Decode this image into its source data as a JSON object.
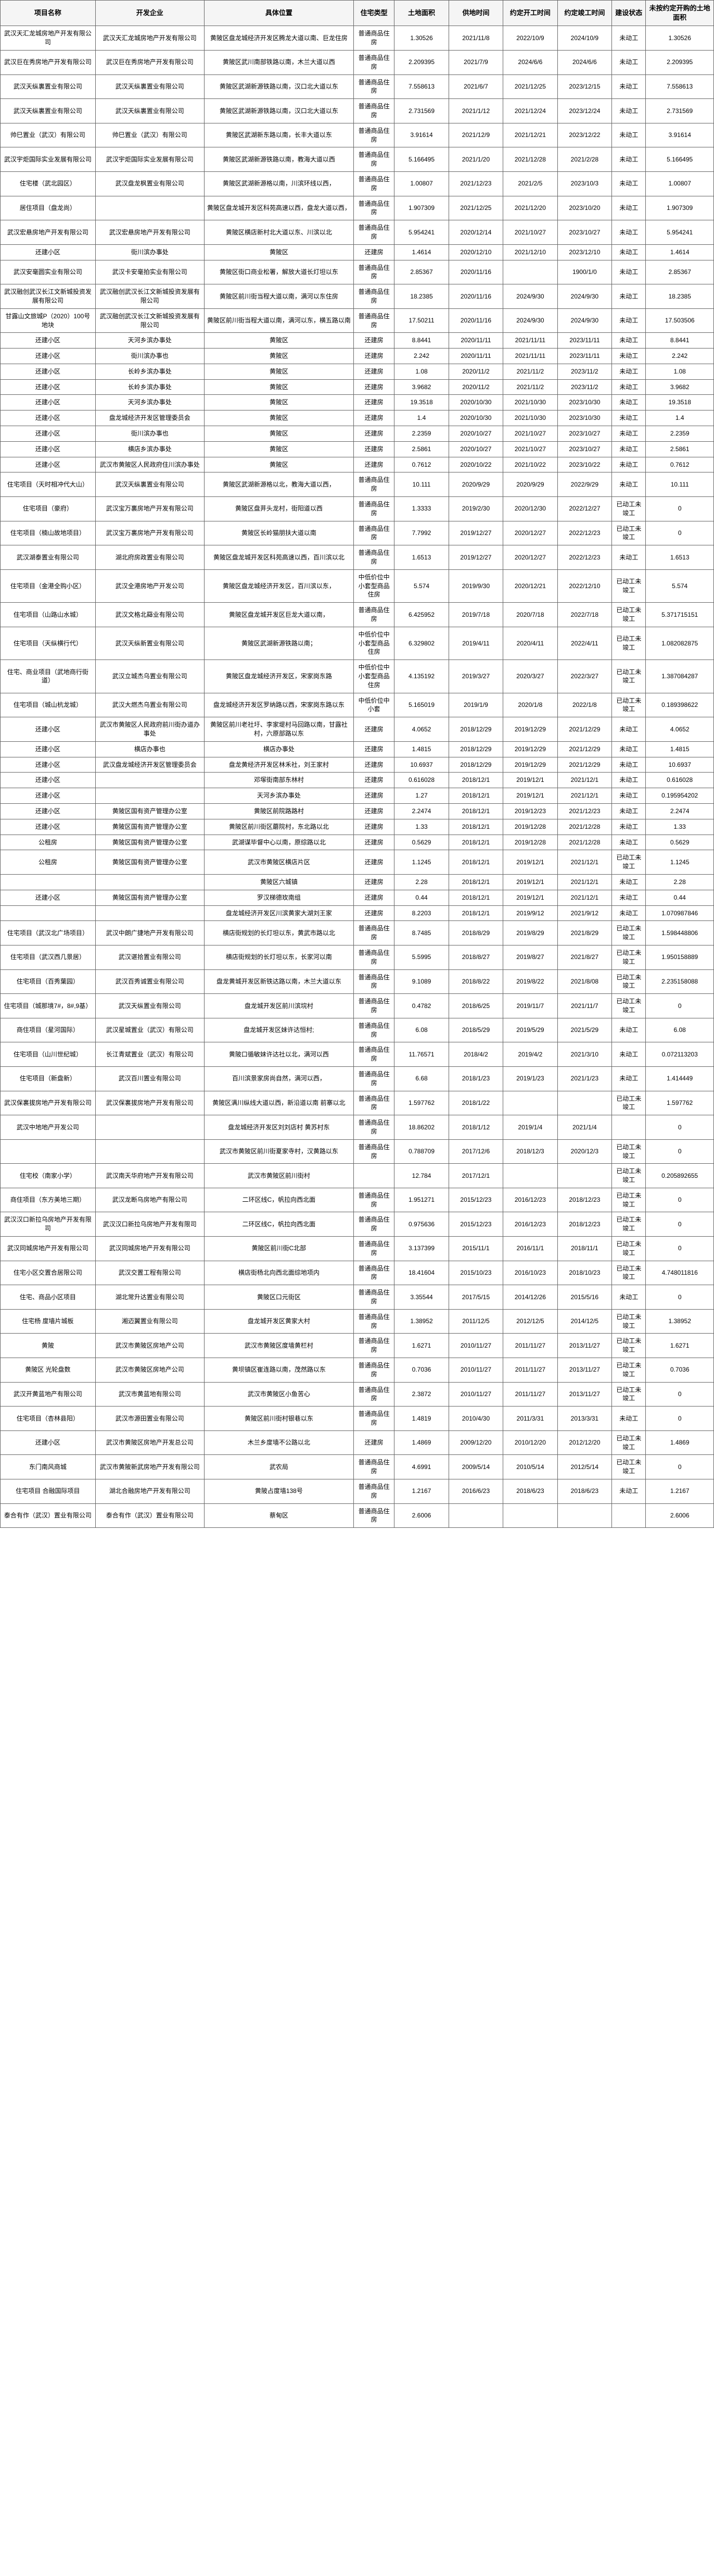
{
  "table": {
    "header_bg": "#f5f5f5",
    "border_color": "#666666",
    "text_color": "#222222",
    "columns": [
      "项目名称",
      "开发企业",
      "具体位置",
      "住宅类型",
      "土地面积",
      "供地时间",
      "约定开工时间",
      "约定竣工时间",
      "建设状态",
      "未按约定开购的土地面积"
    ],
    "rows": [
      [
        "武汉天汇龙城房地产开发有限公司",
        "武汉天汇龙城房地产开发有限公司",
        "黄陂区盘龙城经济开发区腾龙大道以南、巨龙住房",
        "普通商品住房",
        "1.30526",
        "2021/11/8",
        "2022/10/9",
        "2024/10/9",
        "未动工",
        "1.30526"
      ],
      [
        "武汉巨在秀房地产开发有限公司",
        "武汉巨在秀房地产开发有限公司",
        "黄陂区武川南部铁路以南，木兰大道以西",
        "普通商品住房",
        "2.209395",
        "2021/7/9",
        "2024/6/6",
        "2024/6/6",
        "未动工",
        "2.209395"
      ],
      [
        "武汉天纵裏置业有限公司",
        "武汉天纵裏置业有限公司",
        "黄陂区武湖新源铁路以南，汉口北大道以东",
        "普通商品住房",
        "7.558613",
        "2021/6/7",
        "2021/12/25",
        "2023/12/15",
        "未动工",
        "7.558613"
      ],
      [
        "武汉天纵裏置业有限公司",
        "武汉天纵裏置业有限公司",
        "黄陂区武湖新源铁路以南，汉口北大道以东",
        "普通商品住房",
        "2.731569",
        "2021/1/12",
        "2021/12/24",
        "2023/12/24",
        "未动工",
        "2.731569"
      ],
      [
        "帅巳置业（武汉）有限公司",
        "帅巳置业（武汉）有限公司",
        "黄陂区武湖新东路以南，长丰大道以东",
        "普通商品住房",
        "3.91614",
        "2021/12/9",
        "2021/12/21",
        "2023/12/22",
        "未动工",
        "3.91614"
      ],
      [
        "武汉宇炬国际实业发展有限公司",
        "武汉宇炬国际实业发展有限公司",
        "黄陂区武湖新源铁路以南，教海大道以西",
        "普通商品住房",
        "5.166495",
        "2021/1/20",
        "2021/12/28",
        "2021/2/28",
        "未动工",
        "5.166495"
      ],
      [
        "住宅楼（武北园区）",
        "武汉盘龙枫置业有限公司",
        "黄陂区武湖新源格以南，川滨环线以西，",
        "普通商品住房",
        "1.00807",
        "2021/12/23",
        "2021/2/5",
        "2023/10/3",
        "未动工",
        "1.00807"
      ],
      [
        "居住项目（盘龙尚）",
        "",
        "黄陂区盘龙城开发区科苑高速以西，盘龙大道以西，",
        "普通商品住房",
        "1.907309",
        "2021/12/25",
        "2021/12/20",
        "2023/10/20",
        "未动工",
        "1.907309"
      ],
      [
        "武汉宏悬房地产开发有限公司",
        "武汉宏悬房地产开发有限公司",
        "黄陂区横店新村北大道以东、川滨以北",
        "普通商品住房",
        "5.954241",
        "2020/12/14",
        "2021/10/27",
        "2023/10/27",
        "未动工",
        "5.954241"
      ],
      [
        "还建小区",
        "街川滨办事处",
        "黄陂区",
        "还建房",
        "1.4614",
        "2020/12/10",
        "2021/12/10",
        "2023/12/10",
        "未动工",
        "1.4614"
      ],
      [
        "武汉安毫圆实业有限公司",
        "武汉卡安毫拍实业有限公司",
        "黄陂区街口商业松署，解放大道长灯坦以东",
        "普通商品住房",
        "2.85367",
        "2020/11/16",
        "",
        "1900/1/0",
        "未动工",
        "2.85367"
      ],
      [
        "武汉融创武汉长江文新城投资发展有限公司",
        "武汉融创武汉长江文新城投资发展有限公司",
        "黄陂区前川街当程大道以南，满河以东住房",
        "普通商品住房",
        "18.2385",
        "2020/11/16",
        "2024/9/30",
        "2024/9/30",
        "未动工",
        "18.2385"
      ],
      [
        "甘露山文旅城P（2020）100号地块",
        "武汉融创武汉长江文新城投资发展有限公司",
        "黄陂区前川街当程大道以南，满河以东，横五路以南",
        "普通商品住房",
        "17.50211",
        "2020/11/16",
        "2024/9/30",
        "2024/9/30",
        "未动工",
        "17.503506"
      ],
      [
        "还建小区",
        "天河乡滨办事处",
        "黄陂区",
        "还建房",
        "8.8441",
        "2020/11/11",
        "2021/11/11",
        "2023/11/11",
        "未动工",
        "8.8441"
      ],
      [
        "还建小区",
        "街川滨办事也",
        "黄陂区",
        "还建房",
        "2.242",
        "2020/11/11",
        "2021/11/11",
        "2023/11/11",
        "未动工",
        "2.242"
      ],
      [
        "还建小区",
        "长岭乡滨办事处",
        "黄陂区",
        "还建房",
        "1.08",
        "2020/11/2",
        "2021/11/2",
        "2023/11/2",
        "未动工",
        "1.08"
      ],
      [
        "还建小区",
        "长岭乡滨办事处",
        "黄陂区",
        "还建房",
        "3.9682",
        "2020/11/2",
        "2021/11/2",
        "2023/11/2",
        "未动工",
        "3.9682"
      ],
      [
        "还建小区",
        "天河乡滨办事处",
        "黄陂区",
        "还建房",
        "19.3518",
        "2020/10/30",
        "2021/10/30",
        "2023/10/30",
        "未动工",
        "19.3518"
      ],
      [
        "还建小区",
        "盘龙城经济开发区管理委员会",
        "黄陂区",
        "还建房",
        "1.4",
        "2020/10/30",
        "2021/10/30",
        "2023/10/30",
        "未动工",
        "1.4"
      ],
      [
        "还建小区",
        "街川滨办事也",
        "黄陂区",
        "还建房",
        "2.2359",
        "2020/10/27",
        "2021/10/27",
        "2023/10/27",
        "未动工",
        "2.2359"
      ],
      [
        "还建小区",
        "横店乡滨办事处",
        "黄陂区",
        "还建房",
        "2.5861",
        "2020/10/27",
        "2021/10/27",
        "2023/10/27",
        "未动工",
        "2.5861"
      ],
      [
        "还建小区",
        "武汉市黄陂区人民政府住川滨办事处",
        "黄陂区",
        "还建房",
        "0.7612",
        "2020/10/22",
        "2021/10/22",
        "2023/10/22",
        "未动工",
        "0.7612"
      ],
      [
        "住宅项目（天时相冲代大山）",
        "武汉天纵裏置业有限公司",
        "黄陂区武湖新源格以北，教海大道以西，",
        "普通商品住房",
        "10.111",
        "2020/9/29",
        "2020/9/29",
        "2022/9/29",
        "未动工",
        "10.111"
      ],
      [
        "住宅项目（豪府）",
        "武汉宝万裏房地产开发有限公司",
        "黄陂区盘茾头龙村，街阳道以西",
        "普通商品住房",
        "1.3333",
        "2019/2/30",
        "2020/12/30",
        "2022/12/27",
        "已动工未竣工",
        "0"
      ],
      [
        "住宅项目（楠山故地项目）",
        "武汉宝万裏房地产开发有限公司",
        "黄陂区长岭猫朋扶大道以南",
        "普通商品住房",
        "7.7992",
        "2019/12/27",
        "2020/12/27",
        "2022/12/23",
        "已动工未竣工",
        "0"
      ],
      [
        "武汉湖泰置业有限公司",
        "湖北府房政置业有限公司",
        "黄陂区盘龙城开发区科苑高速以西，百川滨以北",
        "普通商品住房",
        "1.6513",
        "2019/12/27",
        "2020/12/27",
        "2022/12/23",
        "未动工",
        "1.6513"
      ],
      [
        "住宅项目（金港全购小区）",
        "武汉全港房地产开发公司",
        "黄陂区盘龙城经济开发区，百川滨以东，",
        "中低价位中小套型商品住房",
        "5.574",
        "2019/9/30",
        "2020/12/21",
        "2022/12/10",
        "已动工未竣工",
        "5.574"
      ],
      [
        "住宅项目（山路山水城）",
        "武汉文格北羄业有限公司",
        "黄陂区盘龙城开发区巨龙大道以南，",
        "普通商品住房",
        "6.425952",
        "2019/7/18",
        "2020/7/18",
        "2022/7/18",
        "已动工未竣工",
        "5.371715151"
      ],
      [
        "住宅项目（天纵横行代）",
        "武汉天纵新置业有限公司",
        "黄陂区武湖新源铁路以南；",
        "中低价位中小套型商品住房",
        "6.329802",
        "2019/4/11",
        "2020/4/11",
        "2022/4/11",
        "已动工未竣工",
        "1.082082875"
      ],
      [
        "住宅、商业项目（武地商行街道）",
        "武汉立城杰乌置业有限公司",
        "黄陂区盘龙城经济开发区，宋家岗东路",
        "中低价位中小套型商品住房",
        "4.135192",
        "2019/3/27",
        "2020/3/27",
        "2022/3/27",
        "已动工未竣工",
        "1.387084287"
      ],
      [
        "住宅项目（城山杭龙城）",
        "武汉大燃杰乌置业有限公司",
        "盘龙城经济开发区罗纳路以西，宋家岗东路以东",
        "中低价位中小套",
        "5.165019",
        "2019/1/9",
        "2020/1/8",
        "2022/1/8",
        "已动工未竣工",
        "0.189398622"
      ],
      [
        "还建小区",
        "武汉市黄陂区人民政府前川街办道办事处",
        "黄陂区前川老社圩、李家堤村马回路以南，甘露社村，六原部路以东",
        "还建房",
        "4.0652",
        "2018/12/29",
        "2019/12/29",
        "2021/12/29",
        "未动工",
        "4.0652"
      ],
      [
        "还建小区",
        "横店办事也",
        "横店办事处",
        "还建房",
        "1.4815",
        "2018/12/29",
        "2019/12/29",
        "2021/12/29",
        "未动工",
        "1.4815"
      ],
      [
        "还建小区",
        "武汉盘龙城经济开发区管理委员会",
        "盘龙黄经济开发区林禾社，刘王家村",
        "还建房",
        "10.6937",
        "2018/12/29",
        "2019/12/29",
        "2021/12/29",
        "未动工",
        "10.6937"
      ],
      [
        "还建小区",
        "",
        "邓塚街南部东林村",
        "还建房",
        "0.616028",
        "2018/12/1",
        "2019/12/1",
        "2021/12/1",
        "未动工",
        "0.616028"
      ],
      [
        "还建小区",
        "",
        "天河乡滨办事处",
        "还建房",
        "1.27",
        "2018/12/1",
        "2019/12/1",
        "2021/12/1",
        "未动工",
        "0.195954202"
      ],
      [
        "还建小区",
        "黄陂区国有资产管理办公室",
        "黄陂区前院路路村",
        "还建房",
        "2.2474",
        "2018/12/1",
        "2019/12/23",
        "2021/12/23",
        "未动工",
        "2.2474"
      ],
      [
        "还建小区",
        "黄陂区国有资产管理办公室",
        "黄陂区前川街区蘑院村，东北路以北",
        "还建房",
        "1.33",
        "2018/12/1",
        "2019/12/28",
        "2021/12/28",
        "未动工",
        "1.33"
      ],
      [
        "公租房",
        "黄陂区国有资产管理办公室",
        "武湖谋毕督中心以南，原综路以北",
        "还建房",
        "0.5629",
        "2018/12/1",
        "2019/12/28",
        "2021/12/28",
        "未动工",
        "0.5629"
      ],
      [
        "公租房",
        "黄陂区国有资产管理办公室",
        "武汉市黄陂区横店片区",
        "还建房",
        "1.1245",
        "2018/12/1",
        "2019/12/1",
        "2021/12/1",
        "已动工未竣工",
        "1.1245"
      ],
      [
        "",
        "",
        "黄陂区六城镇",
        "还建房",
        "2.28",
        "2018/12/1",
        "2019/12/1",
        "2021/12/1",
        "未动工",
        "2.28"
      ],
      [
        "还建小区",
        "黄陂区国有资产管理办公室",
        "罗汉梯德玫南组",
        "还建房",
        "0.44",
        "2018/12/1",
        "2019/12/1",
        "2021/12/1",
        "未动工",
        "0.44"
      ],
      [
        "",
        "",
        "盘龙城经济开发区川滨黄家大湖刘王家",
        "还建房",
        "8.2203",
        "2018/12/1",
        "2019/9/12",
        "2021/9/12",
        "未动工",
        "1.070987846"
      ],
      [
        "住宅项目（武汉北广场项目）",
        "武汉中朗广捷地产开发有限公司",
        "横店街规划的长灯坦以东，黄武市路以北",
        "普通商品住房",
        "8.7485",
        "2018/8/29",
        "2019/8/29",
        "2021/8/29",
        "已动工未竣工",
        "1.598448806"
      ],
      [
        "住宅项目（武汉西几景居）",
        "武汉谌拾置业有限公司",
        "横店街规划的长灯坦以东，长家河以南",
        "普通商品住房",
        "5.5995",
        "2018/8/27",
        "2019/8/27",
        "2021/8/27",
        "已动工未竣工",
        "1.950158889"
      ],
      [
        "住宅项目（百秀葉园）",
        "武汉百秀诚置业有限公司",
        "盘龙黄城开发区新铁达路以南，木兰大道以东",
        "普通商品住房",
        "9.1089",
        "2018/8/22",
        "2019/8/22",
        "2021/8/08",
        "已动工未竣工",
        "2.235158088"
      ],
      [
        "住宅项目（城那境7#，8#,9基）",
        "武汉天纵置业有限公司",
        "盘龙城开发区前川滨垸村",
        "普通商品住房",
        "0.4782",
        "2018/6/25",
        "2019/11/7",
        "2021/11/7",
        "已动工未竣工",
        "0"
      ],
      [
        "商住项目（星河国际）",
        "武汉星城置业（武汉）有限公司",
        "盘龙城开发区妹许达恒村;",
        "普通商品住房",
        "6.08",
        "2018/5/29",
        "2019/5/29",
        "2021/5/29",
        "未动工",
        "6.08"
      ],
      [
        "住宅项目（山川世纪城）",
        "长江青斌置业（武汉）有限公司",
        "黄陂口循敏妹许达社以北，满河以西",
        "普通商品住房",
        "11.76571",
        "2018/4/2",
        "2019/4/2",
        "2021/3/10",
        "未动工",
        "0.072113203"
      ],
      [
        "住宅项目（新盘新）",
        "武汉百川置业有限公司",
        "百川滨景家房尚自然，满河以西，",
        "普通商品住房",
        "6.68",
        "2018/1/23",
        "2019/1/23",
        "2021/1/23",
        "未动工",
        "1.414449"
      ],
      [
        "武汉保裏拔房地产开发有限公司",
        "武汉保裏拔房地产开发有限公司",
        "黄陂区满川纵线大道以西，新沿道以南 前寨以北",
        "普通商品住房",
        "1.597762",
        "2018/1/22",
        "",
        "",
        "已动工未竣工",
        "1.597762"
      ],
      [
        "武汉中地地产开发公司",
        "",
        "盘龙城经济开发区刘刘店村 黄苏村东",
        "普通商品住房",
        "18.86202",
        "2018/1/12",
        "2019/1/4",
        "2021/1/4",
        "",
        "0"
      ],
      [
        "",
        "",
        "武汉市黄陂区前川街夏家寺村，汉黄路以东",
        "普通商品住房",
        "0.788709",
        "2017/12/6",
        "2018/12/3",
        "2020/12/3",
        "已动工未竣工",
        "0"
      ],
      [
        "住宅校（南家小学）",
        "武汉南天华府地产开发有限公司",
        "武汉市黄陂区前川街村",
        "",
        "12.784",
        "2017/12/1",
        "",
        "",
        "已动工未竣工",
        "0.205892655"
      ],
      [
        "商住项目（东方美地三期）",
        "武汉龙断乌房地产有限公司",
        "二环区线C，帆拉向西北面",
        "普通商品住房",
        "1.951271",
        "2015/12/23",
        "2016/12/23",
        "2018/12/23",
        "已动工未竣工",
        "0"
      ],
      [
        "武汉汉口新拉乌房地产开发有限司",
        "武汉汉口新拉乌房地产开发有限司",
        "二环区线C，帆拉向西北面",
        "普通商品住房",
        "0.975636",
        "2015/12/23",
        "2016/12/23",
        "2018/12/23",
        "已动工未竣工",
        "0"
      ],
      [
        "武汉同城房地产开发有限公司",
        "武汉同城房地产开发有限公司",
        "黄陂区前川街C北部",
        "普通商品住房",
        "3.137399",
        "2015/11/1",
        "2016/11/1",
        "2018/11/1",
        "已动工未竣工",
        "0"
      ],
      [
        "住宅小区交置合居限公司",
        "武汉交置工程有限公司",
        "横店街杨北向西北面综地项内",
        "普通商品住房",
        "18.41604",
        "2015/10/23",
        "2016/10/23",
        "2018/10/23",
        "已动工未竣工",
        "4.748011816"
      ],
      [
        "住宅、商品小区项目",
        "湖北常升达置业有限公司",
        "黄陂区口元街区",
        "普通商品住房",
        "3.35544",
        "2017/5/15",
        "2014/12/26",
        "2015/5/16",
        "未动工",
        "0"
      ],
      [
        "住宅杨 度墙片城板",
        "湘迈翼置业有限公司",
        "盘龙城开发区黄家大村",
        "普通商品住房",
        "1.38952",
        "2011/12/5",
        "2012/12/5",
        "2014/12/5",
        "已动工未竣工",
        "1.38952"
      ],
      [
        "黄陂",
        "武汉市黄陂区房地产公司",
        "武汉市黄陂区度墙黄栏村",
        "普通商品住房",
        "1.6271",
        "2010/11/27",
        "2011/11/27",
        "2013/11/27",
        "已动工未竣工",
        "1.6271"
      ],
      [
        "黄陂区 光轮盘数",
        "武汉市黄陂区房地产公司",
        "黄坝镇区崔连路以南，茂然路以东",
        "普通商品住房",
        "0.7036",
        "2010/11/27",
        "2011/11/27",
        "2013/11/27",
        "已动工未竣工",
        "0.7036"
      ],
      [
        "武汉开黄蓝地产有限公司",
        "武汉市黄蓝地有限公司",
        "武汉市黄陂区小鱼苦心",
        "普通商品住房",
        "2.3872",
        "2010/11/27",
        "2011/11/27",
        "2013/11/27",
        "已动工未竣工",
        "0"
      ],
      [
        "住宅项目（杏林县阳）",
        "武汉市源田置业有限公司",
        "黄陂区前川街村银巷以东",
        "普通商品住房",
        "1.4819",
        "2010/4/30",
        "2011/3/31",
        "2013/3/31",
        "未动工",
        "0"
      ],
      [
        "还建小区",
        "武汉市黄陂区房地产开发总公司",
        "木兰乡度墙不公路以北",
        "还建房",
        "1.4869",
        "2009/12/20",
        "2010/12/20",
        "2012/12/20",
        "已动工未竣工",
        "1.4869"
      ],
      [
        "东门南风商城",
        "武汉市黄陂新武房地产开发有限公司",
        "武农局",
        "普通商品住房",
        "4.6991",
        "2009/5/14",
        "2010/5/14",
        "2012/5/14",
        "已动工未竣工",
        "0"
      ],
      [
        "住宅项目 合融国际项目",
        "湖北合融房地产开发有限公司",
        "黄陂占度墙138号",
        "普通商品住房",
        "1.2167",
        "2016/6/23",
        "2018/6/23",
        "2018/6/23",
        "未动工",
        "1.2167"
      ],
      [
        "泰合有作（武汉）置业有限公司",
        "泰合有作（武汉）置业有限公司",
        "蔡甸区",
        "普通商品住房",
        "2.6006",
        "",
        "",
        "",
        "",
        "2.6006"
      ]
    ]
  }
}
